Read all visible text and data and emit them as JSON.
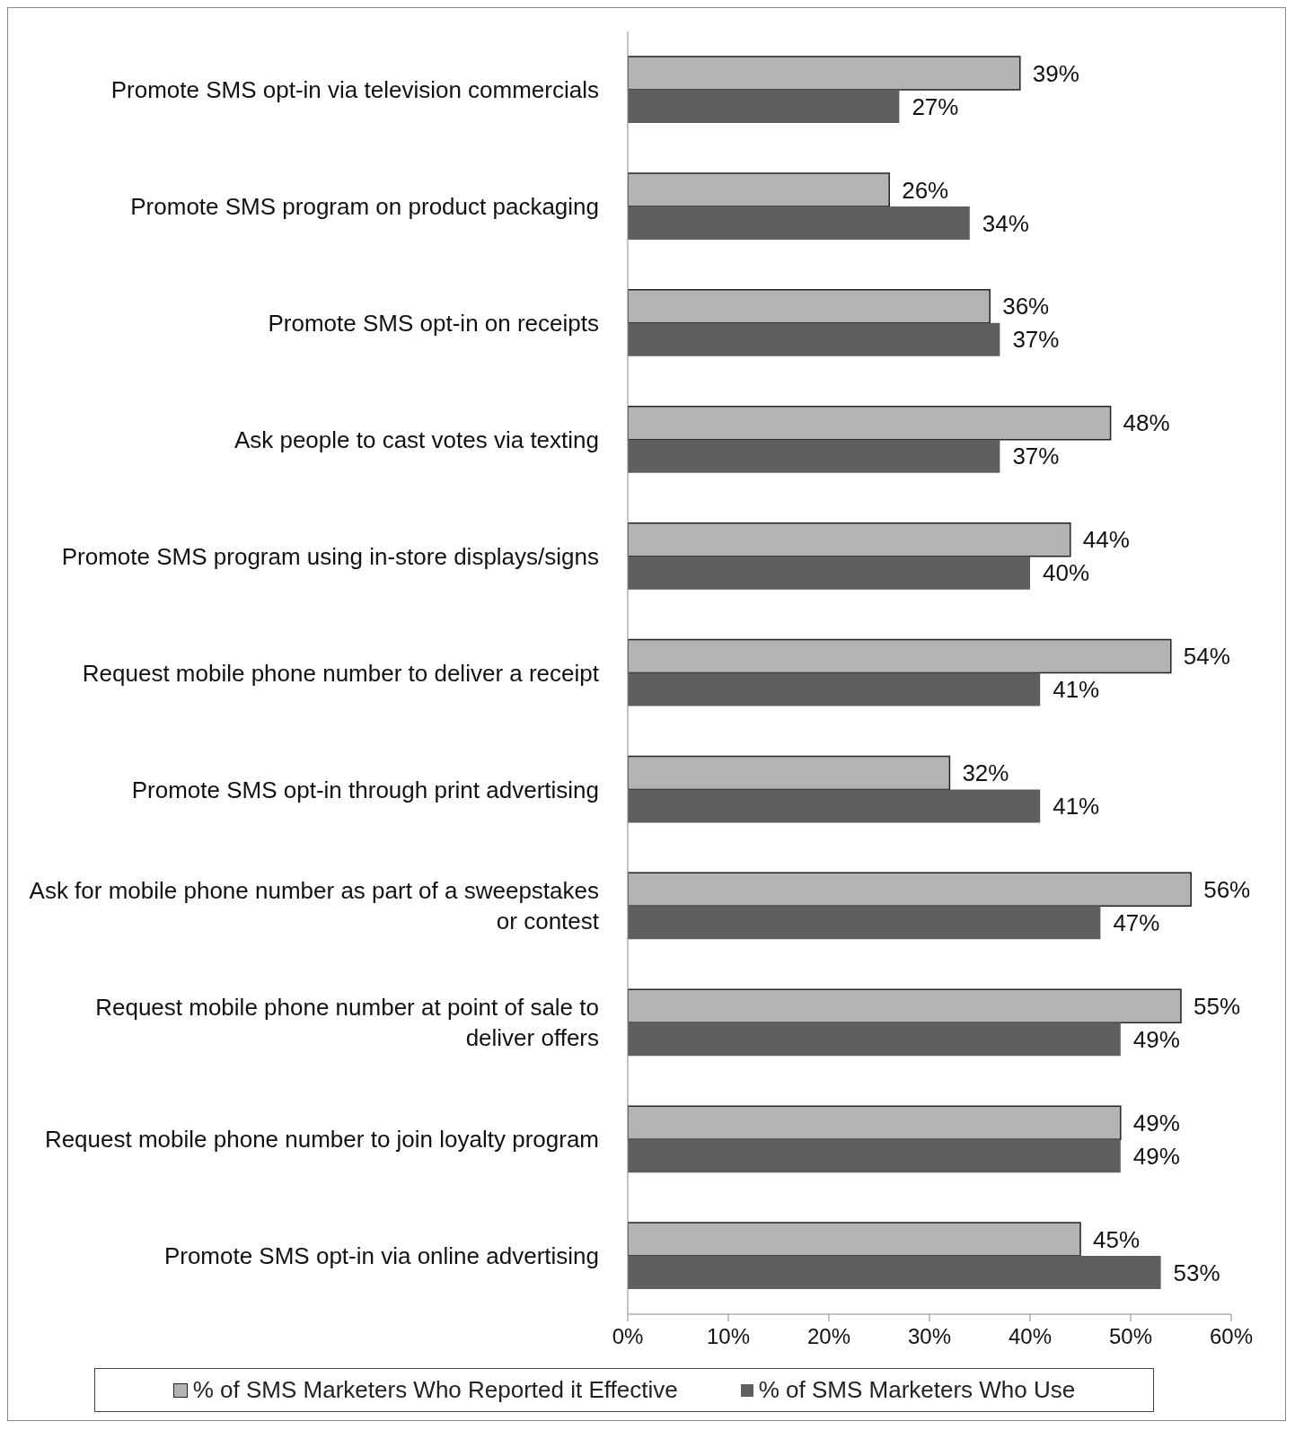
{
  "chart_data": {
    "type": "bar",
    "orientation": "horizontal",
    "categories": [
      "Promote SMS opt-in via television commercials",
      "Promote SMS program on product packaging",
      "Promote SMS opt-in on receipts",
      "Ask people to cast votes via texting",
      "Promote SMS program using in-store displays/signs",
      "Request mobile phone number to deliver a receipt",
      "Promote SMS opt-in through print advertising",
      "Ask for mobile phone number as part of a sweepstakes or contest",
      "Request mobile phone number at point of sale to deliver offers",
      "Request mobile phone number to join loyalty program",
      "Promote SMS opt-in via online advertising"
    ],
    "series": [
      {
        "name": "% of SMS Marketers Who Reported it Effective",
        "color": "#b3b3b3",
        "values": [
          39,
          26,
          36,
          48,
          44,
          54,
          32,
          56,
          55,
          49,
          45
        ],
        "value_labels": [
          "39%",
          "26%",
          "36%",
          "48%",
          "44%",
          "54%",
          "32%",
          "56%",
          "55%",
          "49%",
          "45%"
        ]
      },
      {
        "name": "% of SMS Marketers Who Use",
        "color": "#5f5f5f",
        "values": [
          27,
          34,
          37,
          37,
          40,
          41,
          41,
          47,
          49,
          49,
          53
        ],
        "value_labels": [
          "27%",
          "34%",
          "37%",
          "37%",
          "40%",
          "41%",
          "41%",
          "47%",
          "49%",
          "49%",
          "53%"
        ]
      }
    ],
    "xlim": [
      0,
      60
    ],
    "xticks": [
      {
        "value": 0,
        "label": "0%"
      },
      {
        "value": 10,
        "label": "10%"
      },
      {
        "value": 20,
        "label": "20%"
      },
      {
        "value": 30,
        "label": "30%"
      },
      {
        "value": 40,
        "label": "40%"
      },
      {
        "value": 50,
        "label": "50%"
      },
      {
        "value": 60,
        "label": "60%"
      }
    ],
    "legend": "bottom",
    "grid": false
  }
}
